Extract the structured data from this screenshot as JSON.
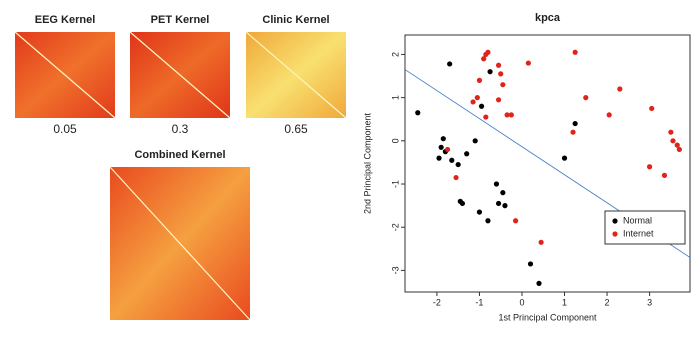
{
  "chart_data": [
    {
      "type": "heatmap",
      "title": "EEG Kernel",
      "weight": 0.05,
      "colors": [
        "#e23a1c",
        "#f0712b"
      ]
    },
    {
      "type": "heatmap",
      "title": "PET Kernel",
      "weight": 0.3,
      "colors": [
        "#e0341a",
        "#ee6a28"
      ]
    },
    {
      "type": "heatmap",
      "title": "Clinic Kernel",
      "weight": 0.65,
      "colors": [
        "#f0a83a",
        "#f8e070"
      ]
    },
    {
      "type": "heatmap",
      "title": "Combined Kernel",
      "colors": [
        "#e94a1f",
        "#f5a040"
      ]
    },
    {
      "type": "scatter",
      "title": "kpca",
      "x_label": "1st Principal Component",
      "y_label": "2nd Principal Component",
      "xlim": [
        -2.75,
        3.95
      ],
      "ylim": [
        -3.5,
        2.45
      ],
      "xticks": [
        -2,
        -1,
        0,
        1,
        2,
        3
      ],
      "yticks": [
        -3,
        -2,
        -1,
        0,
        1,
        2
      ],
      "legend": "lower right",
      "series": [
        {
          "name": "Normal",
          "color": "#000000",
          "x": [
            -2.45,
            -1.7,
            -1.85,
            -1.9,
            -1.8,
            -1.95,
            -1.65,
            -1.5,
            -1.3,
            -1.1,
            -1.45,
            -1.4,
            -1.0,
            -0.8,
            -0.6,
            -0.55,
            -0.4,
            -0.45,
            -0.75,
            -0.95,
            0.2,
            0.4,
            1.0,
            1.25
          ],
          "values": [
            0.65,
            1.78,
            0.05,
            -0.15,
            -0.25,
            -0.4,
            -0.45,
            -0.55,
            -0.3,
            0,
            -1.4,
            -1.45,
            -1.65,
            -1.85,
            -1.0,
            -1.45,
            -1.5,
            -1.2,
            1.6,
            0.8,
            -2.85,
            -3.3,
            -0.4,
            0.4
          ]
        },
        {
          "name": "Internet",
          "color": "#e0241c",
          "x": [
            -1.75,
            -1.55,
            -1.15,
            -1.05,
            -1.0,
            -0.9,
            -0.85,
            -0.8,
            -0.55,
            -0.5,
            -0.45,
            -0.35,
            -0.25,
            -0.55,
            0.15,
            -0.15,
            0.45,
            1.2,
            1.25,
            1.5,
            2.05,
            2.3,
            3.0,
            3.05,
            3.35,
            3.5,
            3.55,
            3.65,
            3.7,
            -0.85
          ],
          "values": [
            -0.2,
            -0.85,
            0.9,
            1.0,
            1.4,
            1.9,
            2.0,
            2.05,
            1.75,
            1.55,
            1.3,
            0.6,
            0.6,
            0.95,
            1.8,
            -1.85,
            -2.35,
            0.2,
            2.05,
            1.0,
            0.6,
            1.2,
            -0.6,
            0.75,
            -0.8,
            0.2,
            0.0,
            -0.1,
            -0.2,
            0.55
          ]
        }
      ],
      "separator": {
        "x": [
          -2.75,
          3.95
        ],
        "y": [
          1.65,
          -2.7
        ],
        "color": "#3a78c0"
      }
    }
  ]
}
